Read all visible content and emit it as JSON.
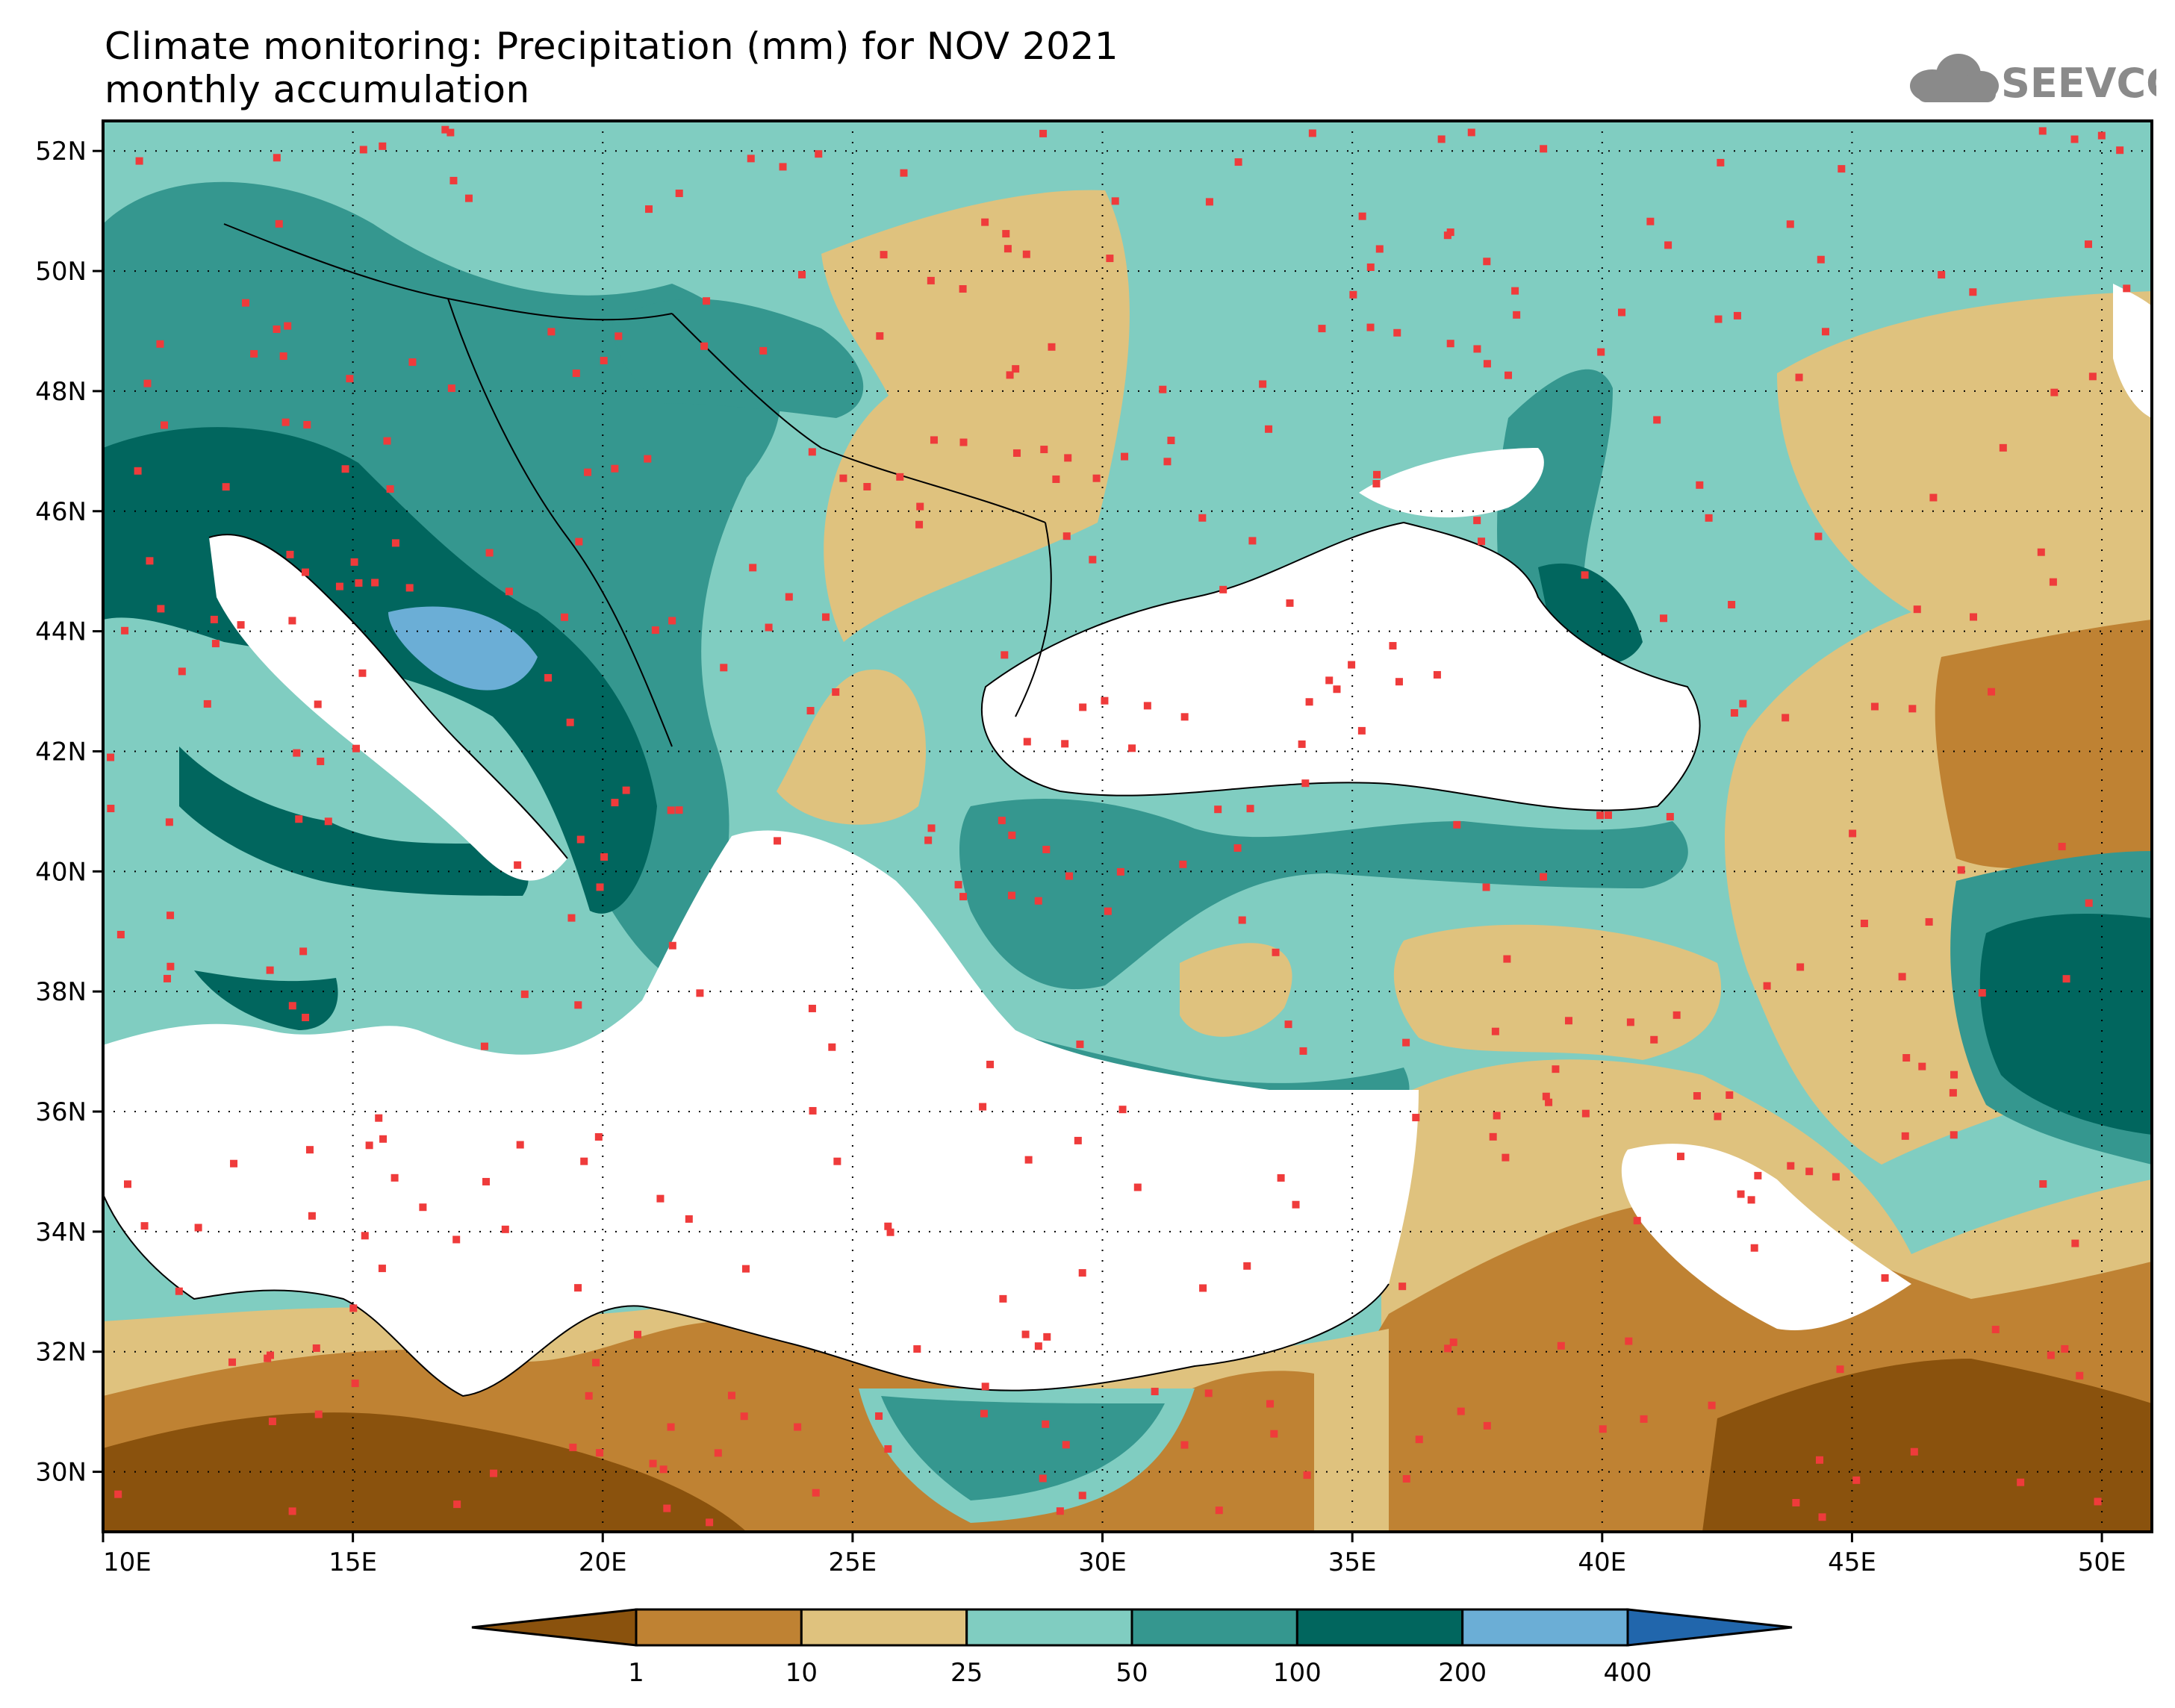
{
  "title": {
    "line1": "Climate monitoring: Precipitation (mm) for NOV 2021",
    "line2": "monthly accumulation"
  },
  "logo": {
    "text": "SEEVCCC",
    "icon": "cloud-icon"
  },
  "map": {
    "lon_range": [
      10,
      51
    ],
    "lat_range": [
      29,
      52.5
    ],
    "lat_ticks": [
      {
        "v": 52,
        "label": "52N"
      },
      {
        "v": 50,
        "label": "50N"
      },
      {
        "v": 48,
        "label": "48N"
      },
      {
        "v": 46,
        "label": "46N"
      },
      {
        "v": 44,
        "label": "44N"
      },
      {
        "v": 42,
        "label": "42N"
      },
      {
        "v": 40,
        "label": "40N"
      },
      {
        "v": 38,
        "label": "38N"
      },
      {
        "v": 36,
        "label": "36N"
      },
      {
        "v": 34,
        "label": "34N"
      },
      {
        "v": 32,
        "label": "32N"
      },
      {
        "v": 30,
        "label": "30N"
      }
    ],
    "lon_ticks": [
      {
        "v": 10,
        "label": "10E"
      },
      {
        "v": 15,
        "label": "15E"
      },
      {
        "v": 20,
        "label": "20E"
      },
      {
        "v": 25,
        "label": "25E"
      },
      {
        "v": 30,
        "label": "30E"
      },
      {
        "v": 35,
        "label": "35E"
      },
      {
        "v": 40,
        "label": "40E"
      },
      {
        "v": 45,
        "label": "45E"
      },
      {
        "v": 50,
        "label": "50E"
      }
    ],
    "grid": "dotted"
  },
  "legend": {
    "colors": [
      "#8a520d",
      "#bf8233",
      "#dfc27e",
      "#80cdc1",
      "#35978f",
      "#01665e",
      "#6baed6",
      "#2166ac"
    ],
    "labels": [
      "1",
      "10",
      "25",
      "50",
      "100",
      "200",
      "400"
    ]
  },
  "station_color": "#ef3b3b",
  "land_color": "#ffffff"
}
